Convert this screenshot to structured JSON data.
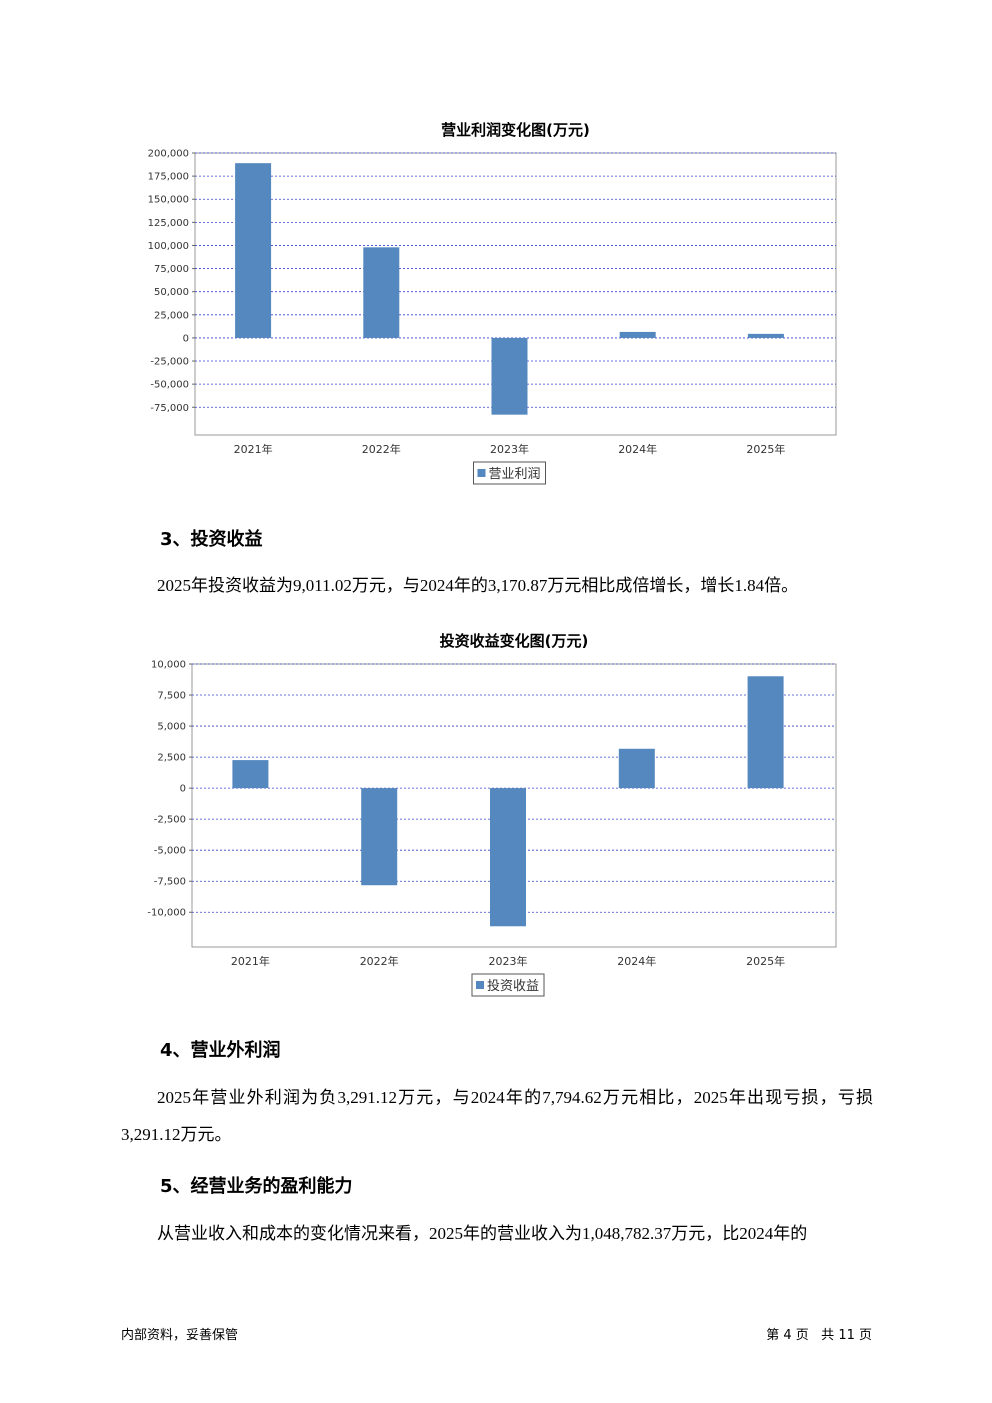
{
  "chart_data": [
    {
      "type": "bar",
      "title": "营业利润变化图(万元)",
      "categories": [
        "2021年",
        "2022年",
        "2023年",
        "2024年",
        "2025年"
      ],
      "series": [
        {
          "name": "营业利润",
          "color": "#5588bf",
          "values": [
            189000,
            98000,
            -83000,
            6500,
            4400
          ]
        }
      ],
      "ylim": [
        -105000,
        200000
      ],
      "yticks": [
        {
          "value": 200000,
          "label": "200,000"
        },
        {
          "value": 175000,
          "label": "175,000"
        },
        {
          "value": 150000,
          "label": "150,000"
        },
        {
          "value": 125000,
          "label": "125,000"
        },
        {
          "value": 100000,
          "label": "100,000"
        },
        {
          "value": 75000,
          "label": "75,000"
        },
        {
          "value": 50000,
          "label": "50,000"
        },
        {
          "value": 25000,
          "label": "25,000"
        },
        0,
        {
          "value": -25000,
          "label": "-25,000"
        },
        {
          "value": -50000,
          "label": "-50,000"
        },
        {
          "value": -75000,
          "label": "-75,000"
        }
      ],
      "grid": true
    },
    {
      "type": "bar",
      "title": "投资收益变化图(万元)",
      "categories": [
        "2021年",
        "2022年",
        "2023年",
        "2024年",
        "2025年"
      ],
      "series": [
        {
          "name": "投资收益",
          "color": "#5588bf",
          "values": [
            2258,
            -7823,
            -11129,
            3170.87,
            9011.02
          ]
        }
      ],
      "ylim": [
        -12800,
        10000
      ],
      "yticks": [
        {
          "value": 10000,
          "label": "10,000"
        },
        {
          "value": 7500,
          "label": "7,500"
        },
        {
          "value": 5000,
          "label": "5,000"
        },
        {
          "value": 2500,
          "label": "2,500"
        },
        0,
        {
          "value": -2500,
          "label": "-2,500"
        },
        {
          "value": -5000,
          "label": "-5,000"
        },
        {
          "value": -7500,
          "label": "-7,500"
        },
        {
          "value": -10000,
          "label": "-10,000"
        }
      ],
      "grid": true
    }
  ],
  "sections": [
    {
      "heading": "3、投资收益",
      "text": "2025年投资收益为9,011.02万元，与2024年的3,170.87万元相比成倍增长，增长1.84倍。"
    },
    {
      "heading": "4、营业外利润",
      "text": "2025年营业外利润为负3,291.12万元，与2024年的7,794.62万元相比，2025年出现亏损，亏损3,291.12万元。"
    },
    {
      "heading": "5、经营业务的盈利能力",
      "text": "从营业收入和成本的变化情况来看，2025年的营业收入为1,048,782.37万元，比2024年的"
    }
  ],
  "footer": {
    "left": "内部资料，妥善保管",
    "right": "第 4 页   共 11 页"
  }
}
